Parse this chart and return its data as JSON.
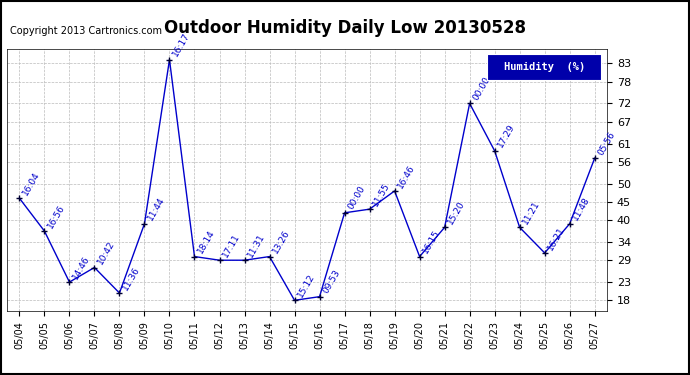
{
  "title": "Outdoor Humidity Daily Low 20130528",
  "copyright_text": "Copyright 2013 Cartronics.com",
  "legend_label": "Humidity  (%)",
  "dates": [
    "05/04",
    "05/05",
    "05/06",
    "05/07",
    "05/08",
    "05/09",
    "05/10",
    "05/11",
    "05/12",
    "05/13",
    "05/14",
    "05/15",
    "05/16",
    "05/17",
    "05/18",
    "05/19",
    "05/20",
    "05/21",
    "05/22",
    "05/23",
    "05/24",
    "05/25",
    "05/26",
    "05/27"
  ],
  "values": [
    46,
    37,
    23,
    27,
    20,
    39,
    84,
    30,
    29,
    29,
    30,
    18,
    19,
    42,
    43,
    48,
    30,
    38,
    72,
    59,
    38,
    31,
    39,
    57
  ],
  "times": [
    "16:04",
    "16:56",
    "14:46",
    "10:42",
    "11:36",
    "11:44",
    "16:17",
    "18:14",
    "17:11",
    "11:31",
    "13:26",
    "15:12",
    "09:53",
    "00:00",
    "11:55",
    "16:46",
    "16:15",
    "15:20",
    "00:00",
    "17:29",
    "11:21",
    "16:21",
    "11:48",
    "05:56"
  ],
  "line_color": "#0000cc",
  "marker_color": "#000033",
  "bg_color": "#ffffff",
  "grid_color": "#bbbbbb",
  "ylim_min": 15,
  "ylim_max": 87,
  "yticks": [
    18,
    23,
    29,
    34,
    40,
    45,
    50,
    56,
    61,
    67,
    72,
    78,
    83
  ],
  "title_fontsize": 12,
  "xlabel_fontsize": 7,
  "ylabel_fontsize": 8,
  "time_fontsize": 6.5,
  "legend_bg": "#0000aa",
  "legend_fg": "#ffffff",
  "legend_fontsize": 7.5,
  "copyright_fontsize": 7
}
